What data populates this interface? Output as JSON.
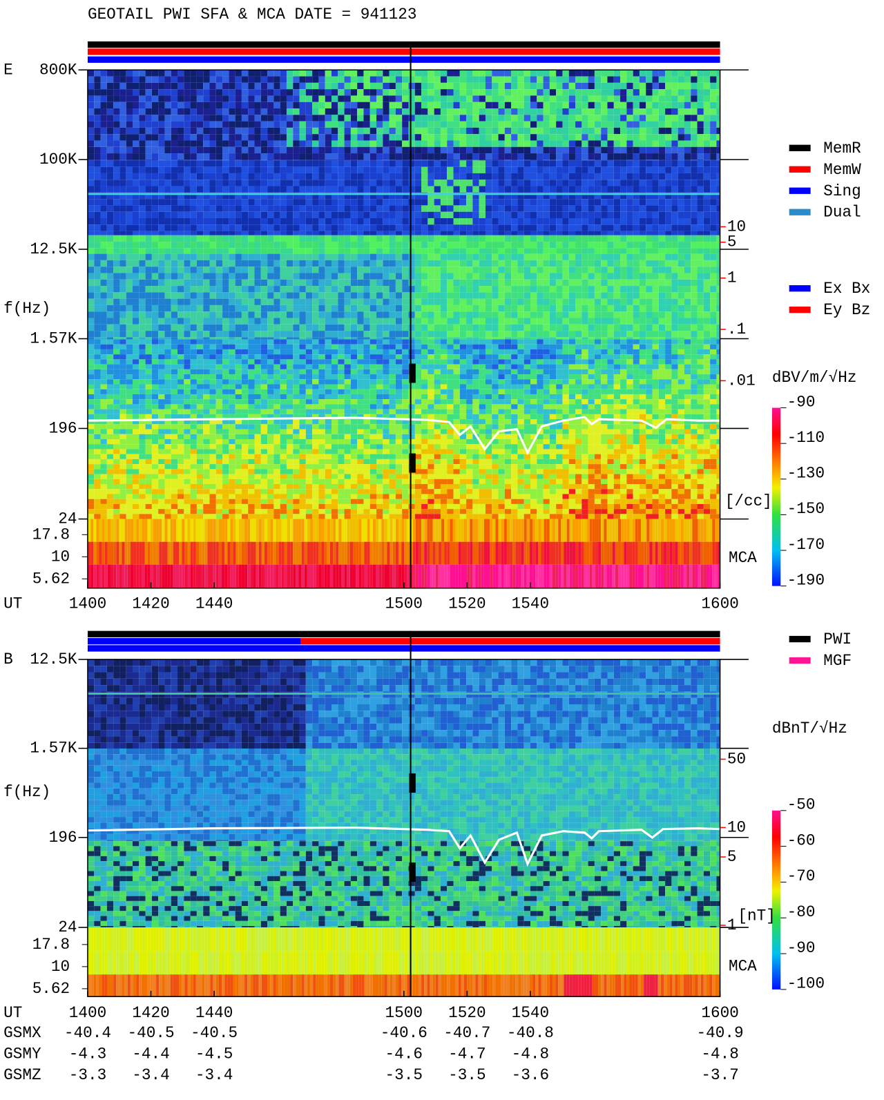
{
  "title": "GEOTAIL  PWI SFA & MCA   DATE = 941123",
  "chart_data": [
    {
      "type": "spectrogram",
      "panel_label": "E",
      "y_label": "f(Hz)",
      "x_label": "UT",
      "log_y": true,
      "ylim": [
        24,
        800000
      ],
      "yticks": [
        {
          "value": 800000,
          "label": "800K"
        },
        {
          "value": 100000,
          "label": "100K"
        },
        {
          "value": 12500,
          "label": "12.5K"
        },
        {
          "value": 1570,
          "label": "1.57K"
        },
        196,
        24
      ],
      "mca_label": "MCA",
      "mca_ticks": [
        17.8,
        10,
        5.62
      ],
      "xlim": [
        1400,
        1600
      ],
      "xticks": [
        1400,
        1420,
        1440,
        1500,
        1520,
        1540,
        1600
      ],
      "density_label": "[/cc]",
      "density_lim": [
        0.01,
        10
      ],
      "density_ticks": [
        10,
        5,
        1,
        {
          "value": 0.1,
          "label": ".1"
        },
        {
          "value": 0.01,
          "label": ".01"
        }
      ],
      "colorbar": {
        "label": "dBV/m/√Hz",
        "lim": [
          -190,
          -90
        ],
        "ticks": [
          -90,
          -110,
          -130,
          -150,
          -170,
          -190
        ]
      },
      "legend": [
        {
          "name": "MemR",
          "color": "#000000"
        },
        {
          "name": "MemW",
          "color": "#ff0000"
        },
        {
          "name": "Sing",
          "color": "#0000ff"
        },
        {
          "name": "Dual",
          "color": "#2a8cc8"
        }
      ],
      "legend2": [
        {
          "name": "Ex Bx",
          "color": "#0000ff"
        },
        {
          "name": "Ey Bz",
          "color": "#ff0000"
        }
      ]
    },
    {
      "type": "spectrogram",
      "panel_label": "B",
      "y_label": "f(Hz)",
      "x_label": "UT",
      "log_y": true,
      "ylim": [
        24,
        12500
      ],
      "yticks": [
        {
          "value": 12500,
          "label": "12.5K"
        },
        {
          "value": 1570,
          "label": "1.57K"
        },
        196,
        24
      ],
      "mca_label": "MCA",
      "mca_ticks": [
        17.8,
        10,
        5.62
      ],
      "xlim": [
        1400,
        1600
      ],
      "xticks": [
        1400,
        1420,
        1440,
        1500,
        1520,
        1540,
        1600
      ],
      "density_label": "[nT]",
      "density_lim": [
        1,
        50
      ],
      "density_ticks": [
        50,
        10,
        5,
        1
      ],
      "colorbar": {
        "label": "dBnT/√Hz",
        "lim": [
          -100,
          -50
        ],
        "ticks": [
          -50,
          -60,
          -70,
          -80,
          -90,
          -100
        ]
      },
      "legend": [
        {
          "name": "PWI",
          "color": "#000000"
        },
        {
          "name": "MGF",
          "color": "#ff1493"
        }
      ]
    }
  ],
  "orbit": {
    "rows": [
      {
        "name": "GSMX",
        "values": [
          -40.4,
          -40.5,
          -40.5,
          -40.6,
          -40.7,
          -40.8,
          -40.9
        ]
      },
      {
        "name": "GSMY",
        "values": [
          -4.3,
          -4.4,
          -4.5,
          -4.6,
          -4.7,
          -4.8,
          -4.8
        ]
      },
      {
        "name": "GSMZ",
        "values": [
          -3.3,
          -3.4,
          -3.4,
          -3.5,
          -3.5,
          -3.6,
          -3.7
        ]
      }
    ]
  }
}
